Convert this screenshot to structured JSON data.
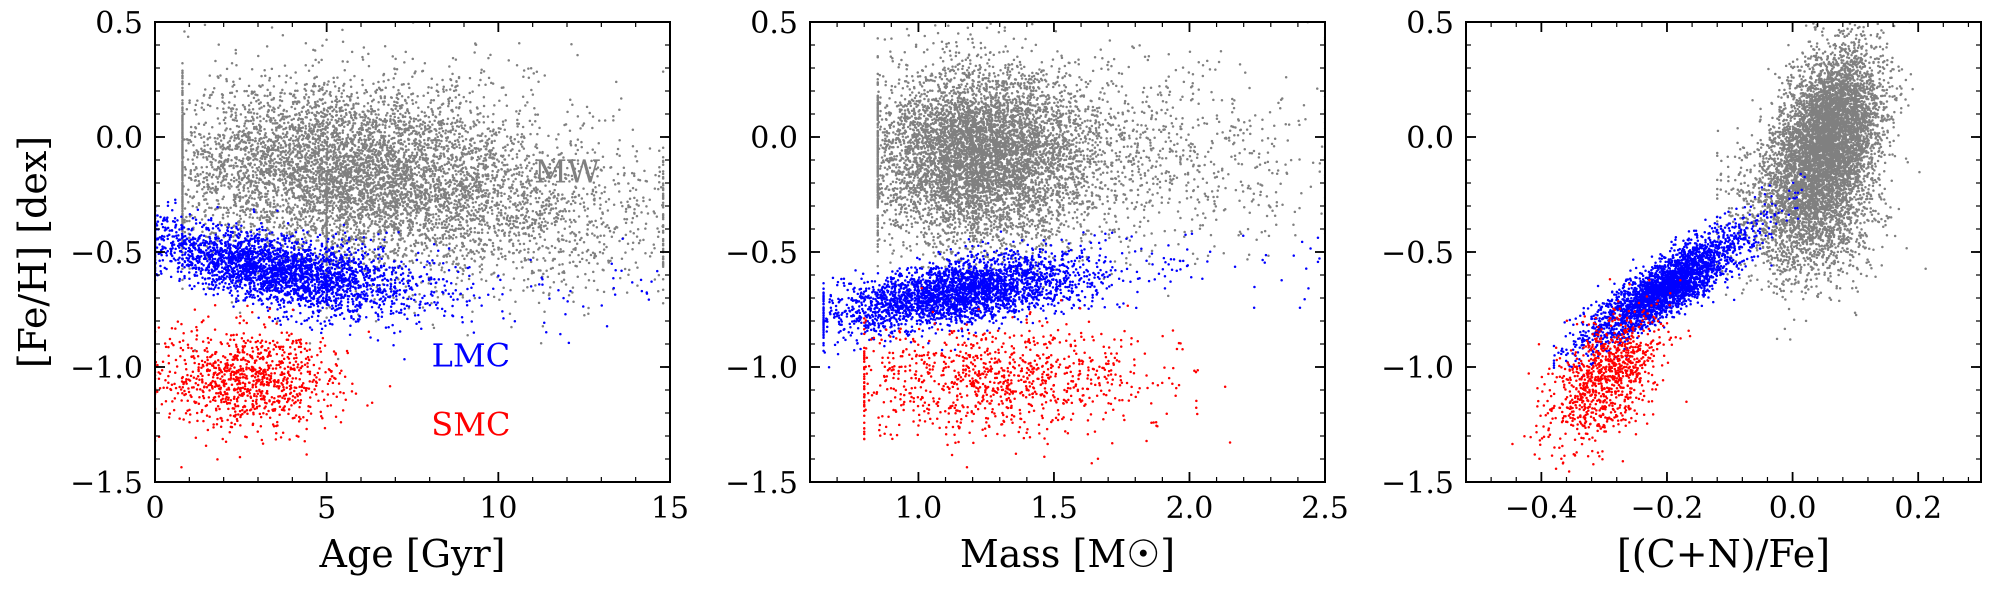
{
  "chart_data": [
    {
      "type": "scatter",
      "xlabel": "Age [Gyr]",
      "ylabel": "[Fe/H] [dex]",
      "xlim": [
        0,
        15
      ],
      "ylim": [
        -1.5,
        0.5
      ],
      "xticks": [
        0,
        5,
        10,
        15
      ],
      "xtick_labels": [
        "0",
        "5",
        "10",
        "15"
      ],
      "yticks": [
        -1.5,
        -1.0,
        -0.5,
        0.0,
        0.5
      ],
      "ytick_labels": [
        "−1.5",
        "−1.0",
        "−0.5",
        "0.0",
        "0.5"
      ],
      "series": [
        {
          "name": "MW",
          "color": "#808080",
          "n_points": 7000,
          "clusters": [
            {
              "weight": 0.78,
              "x": {
                "mean": 5.5,
                "sd": 2.8,
                "min": 0.8,
                "max": 14.8
              },
              "y": {
                "mean": -0.13,
                "sd": 0.19
              }
            },
            {
              "weight": 0.22,
              "x": {
                "mean": 9.5,
                "sd": 3.0,
                "min": 5,
                "max": 14.8
              },
              "y": {
                "mean": -0.35,
                "sd": 0.17
              }
            }
          ]
        },
        {
          "name": "LMC",
          "color": "#0000ff",
          "n_points": 3000,
          "trend": {
            "x": {
              "mean": 3.6,
              "sd": 2.0,
              "min": 0,
              "max": 15
            },
            "y_at_x0": -0.45,
            "slope": -0.045,
            "curvature": 0.0022,
            "y_sd": 0.07
          }
        },
        {
          "name": "SMC",
          "color": "#ff0000",
          "n_points": 1000,
          "clusters": [
            {
              "weight": 1.0,
              "x": {
                "mean": 2.7,
                "sd": 1.3,
                "min": 0,
                "max": 9
              },
              "y": {
                "mean": -1.05,
                "sd": 0.11
              }
            }
          ]
        }
      ],
      "annotations": [
        {
          "text": "MW",
          "color": "#808080",
          "x": 12.0,
          "y": -0.15
        },
        {
          "text": "LMC",
          "color": "#0000ff",
          "x": 9.2,
          "y": -0.95
        },
        {
          "text": "SMC",
          "color": "#ff0000",
          "x": 9.2,
          "y": -1.25
        }
      ]
    },
    {
      "type": "scatter",
      "xlabel": "Mass [M☉]",
      "ylabel": "",
      "xlim": [
        0.6,
        2.5
      ],
      "ylim": [
        -1.5,
        0.5
      ],
      "xticks": [
        1.0,
        1.5,
        2.0,
        2.5
      ],
      "xtick_labels": [
        "1.0",
        "1.5",
        "2.0",
        "2.5"
      ],
      "yticks": [
        -1.5,
        -1.0,
        -0.5,
        0.0,
        0.5
      ],
      "ytick_labels": [
        "−1.5",
        "−1.0",
        "−0.5",
        "0.0",
        "0.5"
      ],
      "series": [
        {
          "name": "MW",
          "color": "#808080",
          "n_points": 7000,
          "clusters": [
            {
              "weight": 0.85,
              "x": {
                "mean": 1.22,
                "sd": 0.2,
                "min": 0.85,
                "max": 2.5
              },
              "y": {
                "mean": -0.08,
                "sd": 0.19
              }
            },
            {
              "weight": 0.15,
              "x": {
                "mean": 1.75,
                "sd": 0.35,
                "min": 1.2,
                "max": 2.5
              },
              "y": {
                "mean": -0.1,
                "sd": 0.2
              }
            }
          ]
        },
        {
          "name": "LMC",
          "color": "#0000ff",
          "n_points": 3000,
          "trend": {
            "x": {
              "mean": 1.15,
              "sd": 0.24,
              "min": 0.65,
              "max": 2.5
            },
            "x0": 1.0,
            "y_at_x0": -0.7,
            "slope": 0.2,
            "curvature": -0.06,
            "y_sd": 0.065
          }
        },
        {
          "name": "SMC",
          "color": "#ff0000",
          "n_points": 1000,
          "clusters": [
            {
              "weight": 1.0,
              "x": {
                "mean": 1.3,
                "sd": 0.3,
                "min": 0.8,
                "max": 2.3
              },
              "y": {
                "mean": -1.05,
                "sd": 0.12
              }
            }
          ]
        }
      ]
    },
    {
      "type": "scatter",
      "xlabel": "[(C+N)/Fe]",
      "ylabel": "",
      "xlim": [
        -0.52,
        0.3
      ],
      "ylim": [
        -1.5,
        0.5
      ],
      "xticks": [
        -0.4,
        -0.2,
        0.0,
        0.2
      ],
      "xtick_labels": [
        "−0.4",
        "−0.2",
        "0.0",
        "0.2"
      ],
      "yticks": [
        -1.5,
        -1.0,
        -0.5,
        0.0,
        0.5
      ],
      "ytick_labels": [
        "−1.5",
        "−1.0",
        "−0.5",
        "0.0",
        "0.5"
      ],
      "series": [
        {
          "name": "MW",
          "color": "#808080",
          "n_points": 7000,
          "clusters": [
            {
              "weight": 0.7,
              "x": {
                "mean": 0.06,
                "sd": 0.04,
                "min": -0.12,
                "max": 0.25
              },
              "y": {
                "mean": 0.02,
                "sd": 0.17
              },
              "slope": 1.5
            },
            {
              "weight": 0.3,
              "x": {
                "mean": 0.02,
                "sd": 0.055,
                "min": -0.12,
                "max": 0.25
              },
              "y": {
                "mean": -0.3,
                "sd": 0.17
              }
            }
          ]
        },
        {
          "name": "LMC",
          "color": "#0000ff",
          "n_points": 3000,
          "trend": {
            "x": {
              "mean": -0.2,
              "sd": 0.06,
              "min": -0.38,
              "max": 0.02
            },
            "x0": -0.2,
            "y_at_x0": -0.65,
            "slope": 1.7,
            "curvature": 0,
            "y_sd": 0.06
          }
        },
        {
          "name": "SMC",
          "color": "#ff0000",
          "n_points": 1000,
          "clusters": [
            {
              "weight": 1.0,
              "x": {
                "mean": -0.3,
                "sd": 0.045,
                "min": -0.48,
                "max": -0.14
              },
              "y": {
                "mean": -1.05,
                "sd": 0.12
              },
              "slope": 1.5
            }
          ]
        }
      ]
    }
  ]
}
